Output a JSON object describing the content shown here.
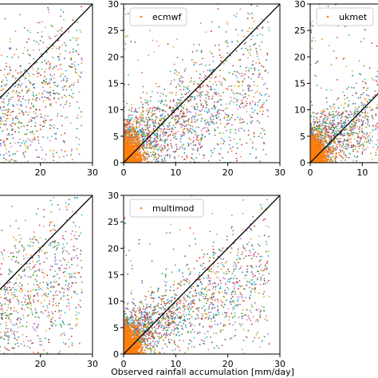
{
  "figure": {
    "xlabel": "Observed rainfall accumulation [mm/day]"
  },
  "chart_data": [
    {
      "type": "scatter",
      "panel": "top-left",
      "legend": "",
      "xlim": [
        0,
        30
      ],
      "ylim": [
        0,
        30
      ],
      "xticks": [
        "20",
        "30"
      ],
      "yticks": [],
      "one_to_one_line": true,
      "spread": 5.5
    },
    {
      "type": "scatter",
      "panel": "top-middle",
      "legend": "ecmwf",
      "legend_placement": "top-left",
      "xlim": [
        0,
        30
      ],
      "ylim": [
        0,
        30
      ],
      "xticks": [
        "0",
        "10",
        "20",
        "30"
      ],
      "yticks": [
        "0",
        "5",
        "10",
        "15",
        "20",
        "25",
        "30"
      ],
      "one_to_one_line": true,
      "spread": 5.0
    },
    {
      "type": "scatter",
      "panel": "top-right",
      "legend": "ukmet",
      "legend_placement": "top-left",
      "xlim": [
        0,
        30
      ],
      "ylim": [
        0,
        30
      ],
      "xticks": [
        "0",
        "10"
      ],
      "yticks": [
        "0",
        "5",
        "10",
        "15",
        "20",
        "25",
        "30"
      ],
      "one_to_one_line": true,
      "spread": 4.5
    },
    {
      "type": "scatter",
      "panel": "bottom-left",
      "legend": "",
      "xlim": [
        0,
        30
      ],
      "ylim": [
        0,
        30
      ],
      "xticks": [
        "20",
        "30"
      ],
      "yticks": [],
      "one_to_one_line": true,
      "spread": 5.5
    },
    {
      "type": "scatter",
      "panel": "bottom-middle",
      "legend": "multimod",
      "legend_placement": "top-left",
      "xlim": [
        0,
        30
      ],
      "ylim": [
        0,
        30
      ],
      "xticks": [
        "0",
        "10",
        "20",
        "30"
      ],
      "yticks": [
        "0",
        "5",
        "10",
        "15",
        "20",
        "25",
        "30"
      ],
      "one_to_one_line": true,
      "spread": 4.2
    }
  ],
  "colors": {
    "legend_marker": "#ff7f0e",
    "dense_cluster": "#ff7f0e",
    "one_to_one": "#000000",
    "palette": [
      "#1f77b4",
      "#ff7f0e",
      "#2ca02c",
      "#d62728",
      "#9467bd",
      "#8c564b",
      "#e377c2",
      "#7f7f7f",
      "#bcbd22",
      "#17becf"
    ]
  }
}
